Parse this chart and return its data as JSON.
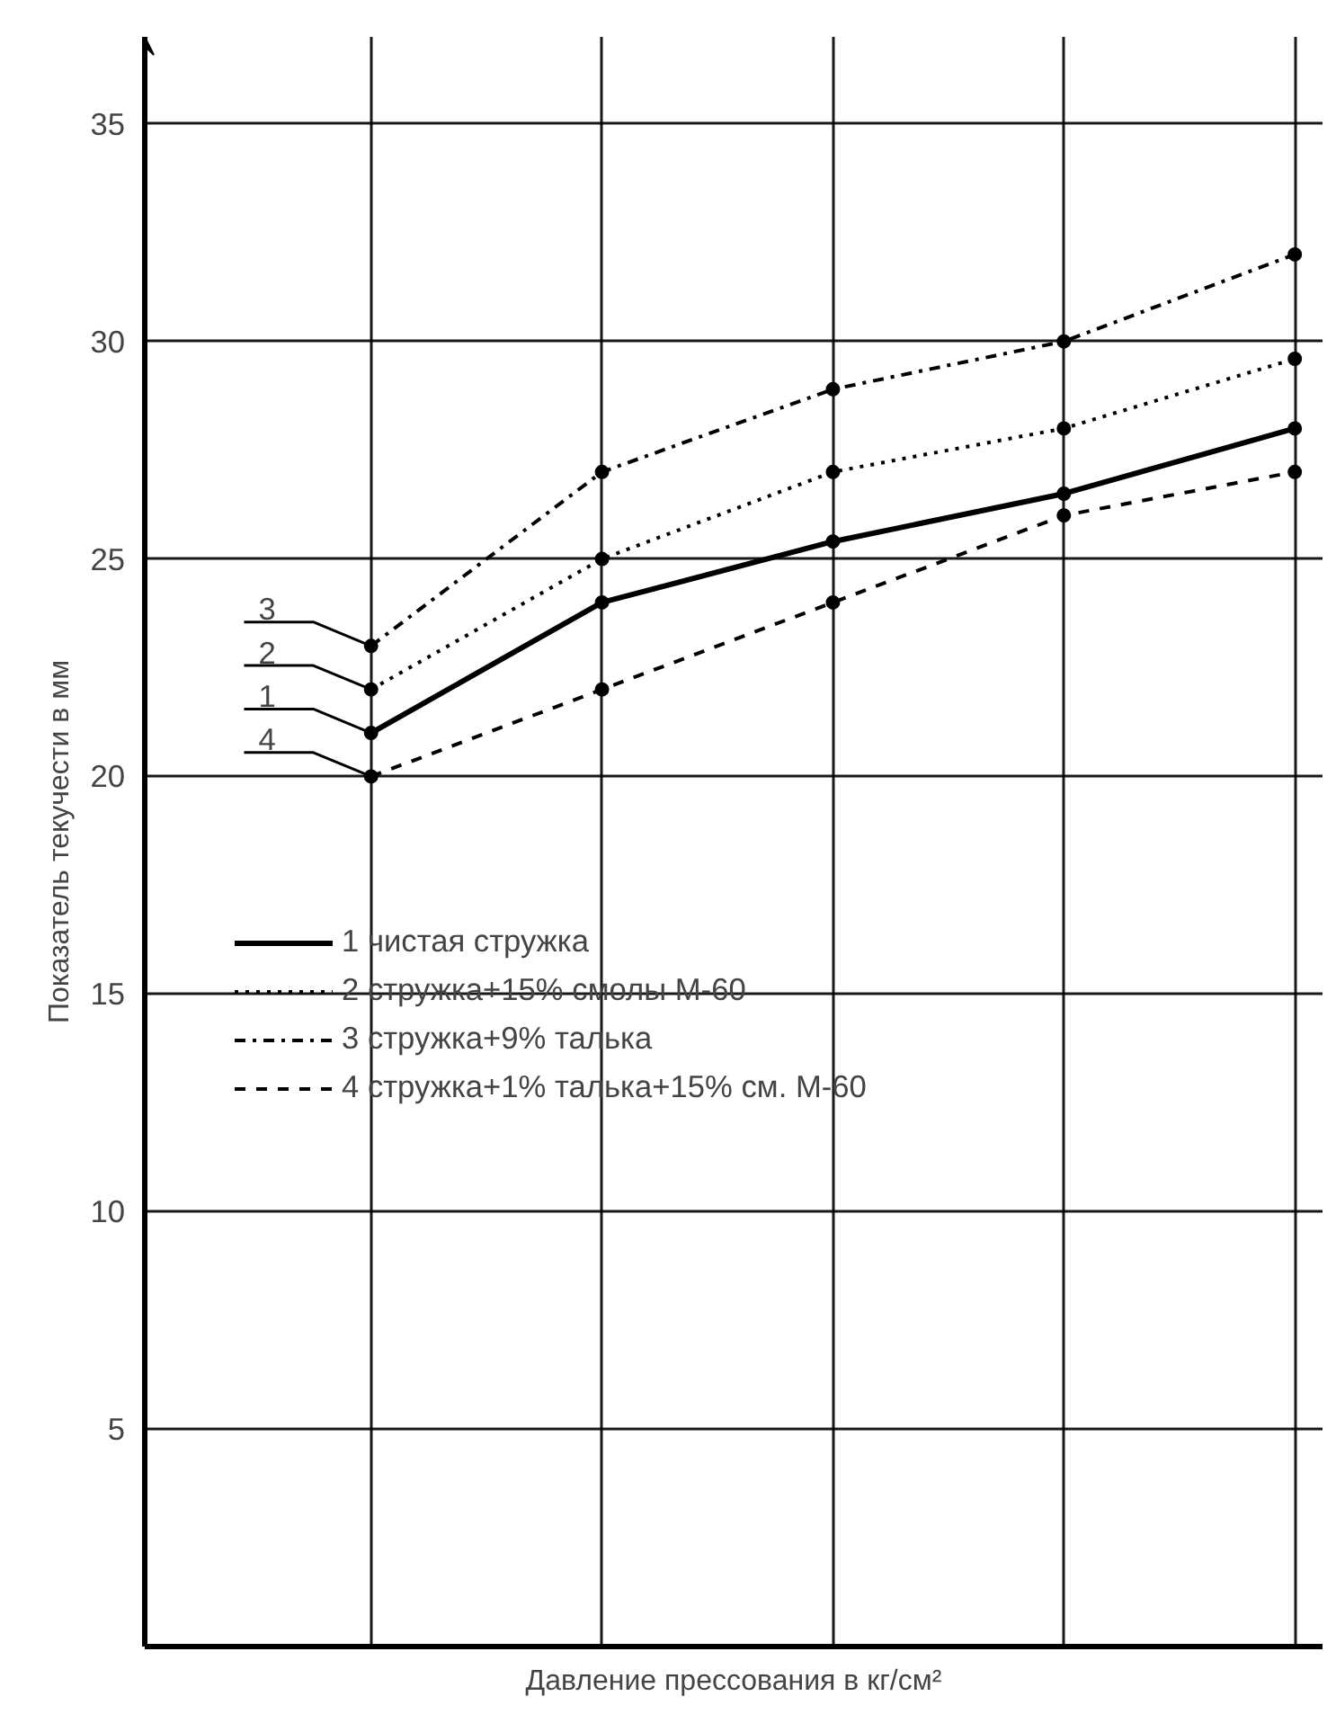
{
  "chart_data": {
    "type": "line",
    "xlabel": "Давление прессования в кг/см²",
    "ylabel": "Показатель текучести в мм",
    "categories": [
      null,
      null,
      null,
      null,
      null
    ],
    "ylim": [
      0,
      37
    ],
    "yticks": [
      5,
      10,
      15,
      20,
      25,
      30,
      35
    ],
    "grid": true,
    "legend": "left",
    "marker": "circle",
    "series": [
      {
        "name": "1 чистая стружка",
        "color": "#000000",
        "line_style": "solid",
        "values": [
          21,
          24,
          25.4,
          26.5,
          28
        ]
      },
      {
        "name": "2 стружка+15% смолы М-60",
        "color": "#000000",
        "line_style": "dotted",
        "values": [
          22,
          25,
          27,
          28,
          29.6
        ]
      },
      {
        "name": "3 стружка+9% талька",
        "color": "#000000",
        "line_style": "dashdot",
        "values": [
          23,
          27,
          28.9,
          30,
          32
        ]
      },
      {
        "name": "4 стружка+1% талька+15% см. М-60",
        "color": "#000000",
        "line_style": "dashed",
        "values": [
          20,
          22,
          24,
          26,
          27
        ]
      }
    ],
    "annotations": [
      "3",
      "2",
      "1",
      "4"
    ]
  }
}
